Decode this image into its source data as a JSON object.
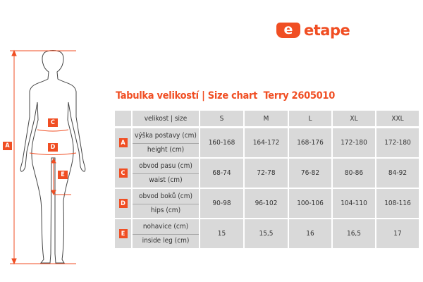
{
  "logo": {
    "text": "etape",
    "mark": "e"
  },
  "title": "Tabulka velikostí | Size chart  Terry 2605010",
  "figure": {
    "labels": [
      "A",
      "C",
      "D",
      "E"
    ]
  },
  "table": {
    "size_header": "velikost | size",
    "sizes": [
      "S",
      "M",
      "L",
      "XL",
      "XXL"
    ],
    "rows": [
      {
        "badge": "A",
        "label_cz": "výška postavy (cm)",
        "label_en": "height (cm)",
        "values": [
          "160-168",
          "164-172",
          "168-176",
          "172-180",
          "172-180"
        ]
      },
      {
        "badge": "C",
        "label_cz": "obvod pasu (cm)",
        "label_en": "waist (cm)",
        "values": [
          "68-74",
          "72-78",
          "76-82",
          "80-86",
          "84-92"
        ]
      },
      {
        "badge": "D",
        "label_cz": "obvod boků (cm)",
        "label_en": "hips (cm)",
        "values": [
          "90-98",
          "96-102",
          "100-106",
          "104-110",
          "108-116"
        ]
      },
      {
        "badge": "E",
        "label_cz": "nohavice (cm)",
        "label_en": "inside leg (cm)",
        "values": [
          "15",
          "15,5",
          "16",
          "16,5",
          "17"
        ]
      }
    ]
  },
  "colors": {
    "accent": "#f04e23",
    "cell": "#d9d9d9"
  }
}
